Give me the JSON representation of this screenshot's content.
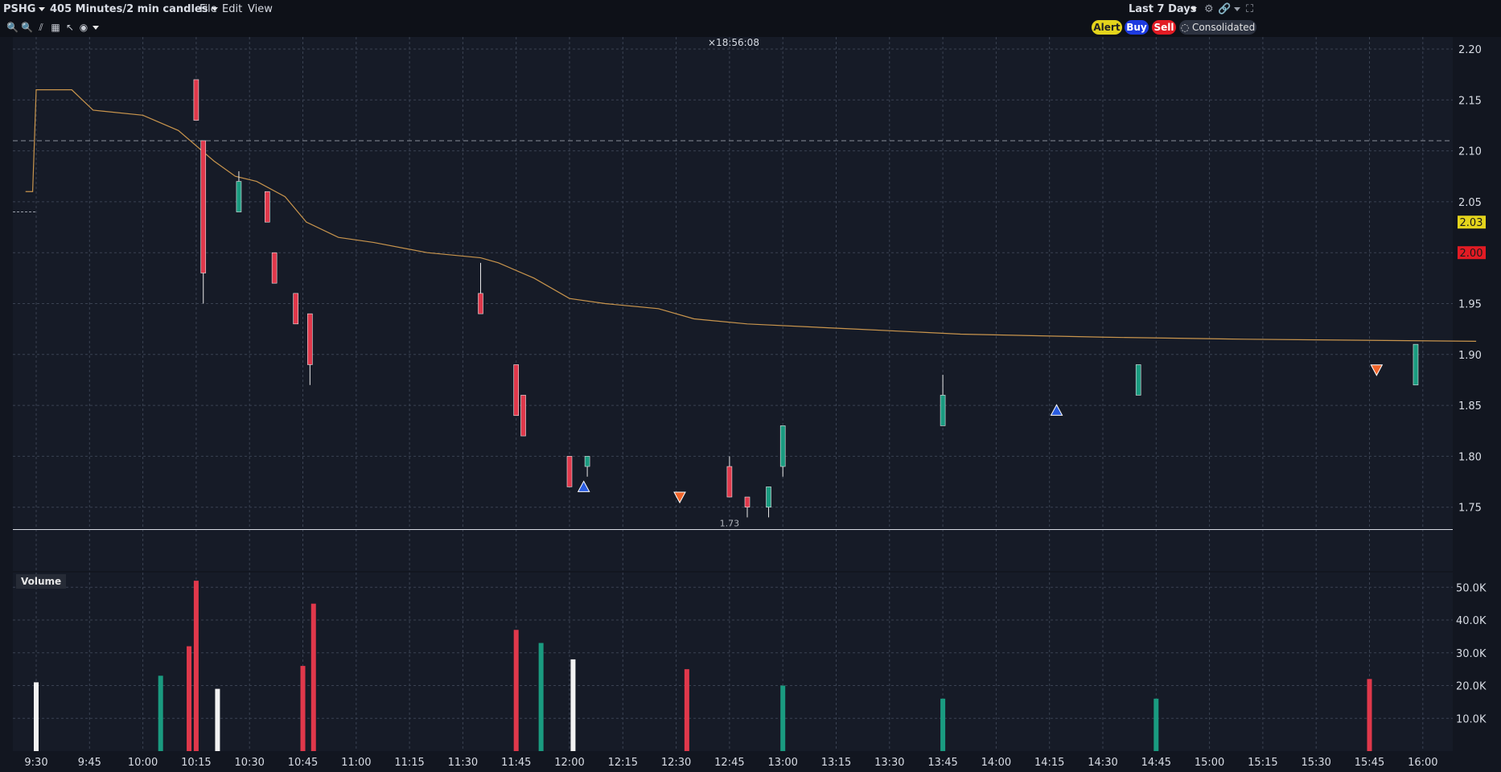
{
  "header": {
    "symbol": "PSHG",
    "timeframe": "405 Minutes/2 min candles",
    "menu": [
      "File",
      "Edit",
      "View"
    ],
    "range": "Last 7 Days"
  },
  "actions": {
    "alert": "Alert",
    "buy": "Buy",
    "sell": "Sell",
    "consolidated": "Consolidated"
  },
  "chart_cursor_time": "18:56:08",
  "price_labels": {
    "last": "2.03",
    "bid": "2.00",
    "low_label": "1.73"
  },
  "volume_tab": "Volume",
  "colors": {
    "up": "#1a9b80",
    "down": "#e0384b",
    "neutral": "#f2f2f2",
    "vwap": "#c9954d",
    "bg": "#161b27",
    "grid": "#3a4252"
  },
  "chart_data": {
    "type": "candlestick",
    "x_ticks": [
      "9:30",
      "9:45",
      "10:00",
      "10:15",
      "10:30",
      "10:45",
      "11:00",
      "11:15",
      "11:30",
      "11:45",
      "12:00",
      "12:15",
      "12:30",
      "12:45",
      "13:00",
      "13:15",
      "13:30",
      "13:45",
      "14:00",
      "14:15",
      "14:30",
      "14:45",
      "15:00",
      "15:15",
      "15:30",
      "15:45",
      "16:00"
    ],
    "price_ticks": [
      1.75,
      1.8,
      1.85,
      1.9,
      1.95,
      2.0,
      2.05,
      2.1,
      2.15,
      2.2
    ],
    "ylim": [
      1.72,
      2.22
    ],
    "volume_ticks": [
      "10.0K",
      "20.0K",
      "30.0K",
      "40.0K",
      "50.0K"
    ],
    "volume_ylim": [
      0,
      54000
    ],
    "reference_lines": {
      "dashed_high": 2.11,
      "low_solid": 1.728,
      "prior_close": 2.04
    },
    "candles": [
      {
        "t": "10:15",
        "o": 2.17,
        "h": 2.17,
        "l": 2.13,
        "c": 2.13
      },
      {
        "t": "10:17",
        "o": 2.11,
        "h": 2.11,
        "l": 1.95,
        "c": 1.98
      },
      {
        "t": "10:27",
        "o": 2.04,
        "h": 2.08,
        "l": 2.04,
        "c": 2.07
      },
      {
        "t": "10:35",
        "o": 2.06,
        "h": 2.06,
        "l": 2.03,
        "c": 2.03
      },
      {
        "t": "10:37",
        "o": 2.0,
        "h": 2.0,
        "l": 1.97,
        "c": 1.97
      },
      {
        "t": "10:43",
        "o": 1.96,
        "h": 1.96,
        "l": 1.93,
        "c": 1.93
      },
      {
        "t": "10:47",
        "o": 1.94,
        "h": 1.94,
        "l": 1.87,
        "c": 1.89
      },
      {
        "t": "11:35",
        "o": 1.96,
        "h": 1.99,
        "l": 1.94,
        "c": 1.94
      },
      {
        "t": "11:45",
        "o": 1.89,
        "h": 1.89,
        "l": 1.84,
        "c": 1.84
      },
      {
        "t": "11:47",
        "o": 1.86,
        "h": 1.86,
        "l": 1.82,
        "c": 1.82
      },
      {
        "t": "12:00",
        "o": 1.8,
        "h": 1.8,
        "l": 1.77,
        "c": 1.77
      },
      {
        "t": "12:05",
        "o": 1.79,
        "h": 1.8,
        "l": 1.78,
        "c": 1.8
      },
      {
        "t": "12:45",
        "o": 1.79,
        "h": 1.8,
        "l": 1.76,
        "c": 1.76
      },
      {
        "t": "12:50",
        "o": 1.76,
        "h": 1.76,
        "l": 1.74,
        "c": 1.75
      },
      {
        "t": "12:56",
        "o": 1.75,
        "h": 1.77,
        "l": 1.74,
        "c": 1.77
      },
      {
        "t": "13:00",
        "o": 1.79,
        "h": 1.83,
        "l": 1.78,
        "c": 1.83
      },
      {
        "t": "13:45",
        "o": 1.83,
        "h": 1.88,
        "l": 1.83,
        "c": 1.86
      },
      {
        "t": "14:40",
        "o": 1.86,
        "h": 1.89,
        "l": 1.86,
        "c": 1.89
      },
      {
        "t": "15:58",
        "o": 1.87,
        "h": 1.91,
        "l": 1.87,
        "c": 1.91
      }
    ],
    "volume": [
      {
        "t": "9:30",
        "v": 21000,
        "dir": "neutral"
      },
      {
        "t": "10:05",
        "v": 23000,
        "dir": "up"
      },
      {
        "t": "10:13",
        "v": 32000,
        "dir": "down"
      },
      {
        "t": "10:15",
        "v": 52000,
        "dir": "down"
      },
      {
        "t": "10:21",
        "v": 19000,
        "dir": "neutral"
      },
      {
        "t": "10:45",
        "v": 26000,
        "dir": "down"
      },
      {
        "t": "10:48",
        "v": 45000,
        "dir": "down"
      },
      {
        "t": "11:45",
        "v": 37000,
        "dir": "down"
      },
      {
        "t": "11:52",
        "v": 33000,
        "dir": "up"
      },
      {
        "t": "12:01",
        "v": 28000,
        "dir": "neutral"
      },
      {
        "t": "12:33",
        "v": 25000,
        "dir": "down"
      },
      {
        "t": "13:00",
        "v": 20000,
        "dir": "up"
      },
      {
        "t": "13:45",
        "v": 16000,
        "dir": "up"
      },
      {
        "t": "14:45",
        "v": 16000,
        "dir": "up"
      },
      {
        "t": "15:45",
        "v": 22000,
        "dir": "down"
      }
    ],
    "signals": [
      {
        "t": "12:04",
        "price": 1.77,
        "type": "buy"
      },
      {
        "t": "12:31",
        "price": 1.76,
        "type": "sell"
      },
      {
        "t": "14:17",
        "price": 1.845,
        "type": "buy"
      },
      {
        "t": "15:47",
        "price": 1.885,
        "type": "sell"
      }
    ]
  }
}
